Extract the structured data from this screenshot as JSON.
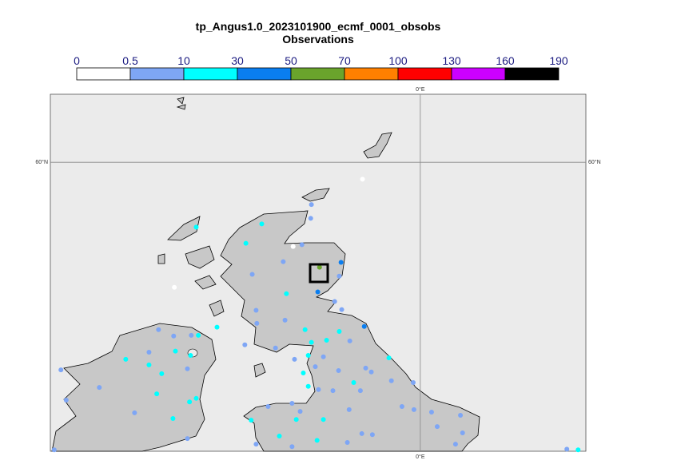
{
  "chart_data": {
    "type": "map",
    "title": "tp_Angus1.0_2023101900_ecmf_0001_obsobs",
    "subtitle": "Observations",
    "colorbar": {
      "ticks": [
        0,
        0.5,
        10,
        30,
        50,
        70,
        100,
        130,
        160,
        190
      ],
      "colors": [
        "#ffffff",
        "#7ea6f5",
        "#00ffff",
        "#0a7ef0",
        "#6aa42c",
        "#ff8000",
        "#ff0000",
        "#cc00ff",
        "#000000"
      ]
    },
    "xlim": [
      -10.5,
      4.7
    ],
    "ylim": [
      51.8,
      61.93
    ],
    "graticule": {
      "lon": 0,
      "lat": 60,
      "lon_label": "0°E",
      "lat_label": "60°N"
    },
    "stations": {
      "lon": [
        -1.64,
        -6.98,
        -3.61,
        -6.36,
        -4.5,
        -3.09,
        -3.11,
        -4.95,
        -3.36,
        -3.89,
        -2.25,
        -2.86,
        -4.77,
        -2.3,
        -2.91,
        -3.8,
        -4.66,
        -2.43,
        -2.23,
        -1.59,
        -4.64,
        -3.84,
        -3.27,
        -2.66,
        -2.3,
        -2.0,
        -3.09,
        -4.11,
        -4.98,
        -3.18,
        -2.75,
        -3.57,
        -2.98,
        -3.32,
        -2.32,
        -1.55,
        -1.39,
        -0.89,
        -1.7,
        -1.89,
        -2.48,
        -2.89,
        -3.18,
        -0.82,
        -0.2,
        -4.32,
        -3.64,
        -3.41,
        -2.02,
        -4.8,
        -3.52,
        -2.75,
        -0.52,
        -0.18,
        0.32,
        1.14,
        0.48,
        -4.0,
        -2.93,
        -1.66,
        -1.36,
        -4.66,
        -3.64,
        -2.07,
        1.0,
        1.2,
        4.16,
        4.48,
        -10.39,
        -10.2,
        -10.05,
        -9.11,
        -8.36,
        -8.11,
        -7.7,
        -7.7,
        -7.43,
        -7.34,
        -7.48,
        -7.0,
        -6.95,
        -6.61,
        -6.52,
        -6.5,
        -6.3,
        -5.77,
        -6.55,
        -6.36,
        -7.02,
        -6.61
      ],
      "lat": [
        59.52,
        56.45,
        57.61,
        58.16,
        58.25,
        58.8,
        58.41,
        57.7,
        57.66,
        57.18,
        57.16,
        57.02,
        56.82,
        56.77,
        56.32,
        56.27,
        55.8,
        56.05,
        55.82,
        55.34,
        55.43,
        55.52,
        55.25,
        54.95,
        55.2,
        54.93,
        54.89,
        54.73,
        54.82,
        54.52,
        54.48,
        54.41,
        54.2,
        54.02,
        54.09,
        54.16,
        54.05,
        54.45,
        53.52,
        53.75,
        53.52,
        53.55,
        53.64,
        53.8,
        53.75,
        53.07,
        53.16,
        52.93,
        52.98,
        52.68,
        52.7,
        52.7,
        53.07,
        52.98,
        52.91,
        52.82,
        52.5,
        52.23,
        52.11,
        52.3,
        52.27,
        52.0,
        51.93,
        52.05,
        52.0,
        52.32,
        51.86,
        51.84,
        51.84,
        54.11,
        53.25,
        53.61,
        54.41,
        52.89,
        54.61,
        54.25,
        55.25,
        54.0,
        53.43,
        55.07,
        54.64,
        54.14,
        54.52,
        55.09,
        55.09,
        55.32,
        53.2,
        53.3,
        52.73,
        52.16
      ],
      "values": [
        0.2,
        0.2,
        0.2,
        20,
        20,
        5,
        5,
        20,
        5,
        5,
        40,
        60,
        5,
        5,
        40,
        20,
        5,
        5,
        5,
        40,
        5,
        5,
        20,
        20,
        20,
        5,
        20,
        5,
        5,
        20,
        5,
        5,
        5,
        20,
        5,
        5,
        5,
        20,
        5,
        20,
        5,
        5,
        20,
        5,
        5,
        5,
        5,
        5,
        5,
        20,
        20,
        20,
        5,
        5,
        5,
        5,
        5,
        20,
        20,
        5,
        5,
        5,
        5,
        5,
        5,
        5,
        5,
        20,
        5,
        5,
        5,
        5,
        20,
        5,
        5,
        20,
        5,
        20,
        20,
        5,
        20,
        5,
        20,
        5,
        20,
        20,
        20,
        20,
        20,
        5
      ]
    }
  }
}
